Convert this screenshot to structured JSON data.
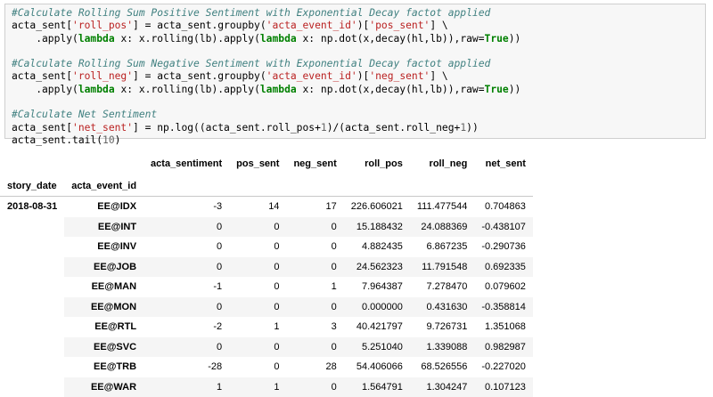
{
  "code": {
    "line1": "#Calculate Rolling Sum Positive Sentiment with Exponential Decay factot applied",
    "line2": {
      "a": "acta_sent[",
      "b": "'roll_pos'",
      "c": "] = acta_sent.groupby(",
      "d": "'acta_event_id'",
      "e": ")[",
      "f": "'pos_sent'",
      "g": "] \\"
    },
    "line3": {
      "a": "    .apply(",
      "b": "lambda",
      "c": " x: x.rolling(lb).apply(",
      "d": "lambda",
      "e": " x: np.dot(x,decay(hl,lb)),raw=",
      "f": "True",
      "g": "))"
    },
    "line5": "#Calculate Rolling Sum Negative Sentiment with Exponential Decay factot applied",
    "line6": {
      "a": "acta_sent[",
      "b": "'roll_neg'",
      "c": "] = acta_sent.groupby(",
      "d": "'acta_event_id'",
      "e": ")[",
      "f": "'neg_sent'",
      "g": "] \\"
    },
    "line7": {
      "a": "    .apply(",
      "b": "lambda",
      "c": " x: x.rolling(lb).apply(",
      "d": "lambda",
      "e": " x: np.dot(x,decay(hl,lb)),raw=",
      "f": "True",
      "g": "))"
    },
    "line9": "#Calculate Net Sentiment",
    "line10": {
      "a": "acta_sent[",
      "b": "'net_sent'",
      "c": "] = np.log((acta_sent.roll_pos+",
      "d": "1",
      "e": ")/(acta_sent.roll_neg+",
      "f": "1",
      "g": "))"
    },
    "line11": {
      "a": "acta_sent.tail(",
      "b": "10",
      "c": ")"
    }
  },
  "table": {
    "columns": [
      "acta_sentiment",
      "pos_sent",
      "neg_sent",
      "roll_pos",
      "roll_neg",
      "net_sent"
    ],
    "index_names": [
      "story_date",
      "acta_event_id"
    ],
    "date": "2018-08-31",
    "rows": [
      {
        "event": "EE@IDX",
        "v": [
          "-3",
          "14",
          "17",
          "226.606021",
          "111.477544",
          "0.704863"
        ]
      },
      {
        "event": "EE@INT",
        "v": [
          "0",
          "0",
          "0",
          "15.188432",
          "24.088369",
          "-0.438107"
        ]
      },
      {
        "event": "EE@INV",
        "v": [
          "0",
          "0",
          "0",
          "4.882435",
          "6.867235",
          "-0.290736"
        ]
      },
      {
        "event": "EE@JOB",
        "v": [
          "0",
          "0",
          "0",
          "24.562323",
          "11.791548",
          "0.692335"
        ]
      },
      {
        "event": "EE@MAN",
        "v": [
          "-1",
          "0",
          "1",
          "7.964387",
          "7.278470",
          "0.079602"
        ]
      },
      {
        "event": "EE@MON",
        "v": [
          "0",
          "0",
          "0",
          "0.000000",
          "0.431630",
          "-0.358814"
        ]
      },
      {
        "event": "EE@RTL",
        "v": [
          "-2",
          "1",
          "3",
          "40.421797",
          "9.726731",
          "1.351068"
        ]
      },
      {
        "event": "EE@SVC",
        "v": [
          "0",
          "0",
          "0",
          "5.251040",
          "1.339088",
          "0.982987"
        ]
      },
      {
        "event": "EE@TRB",
        "v": [
          "-28",
          "0",
          "28",
          "54.406066",
          "68.526556",
          "-0.227020"
        ]
      },
      {
        "event": "EE@WAR",
        "v": [
          "1",
          "1",
          "0",
          "1.564791",
          "1.304247",
          "0.107123"
        ]
      }
    ]
  }
}
